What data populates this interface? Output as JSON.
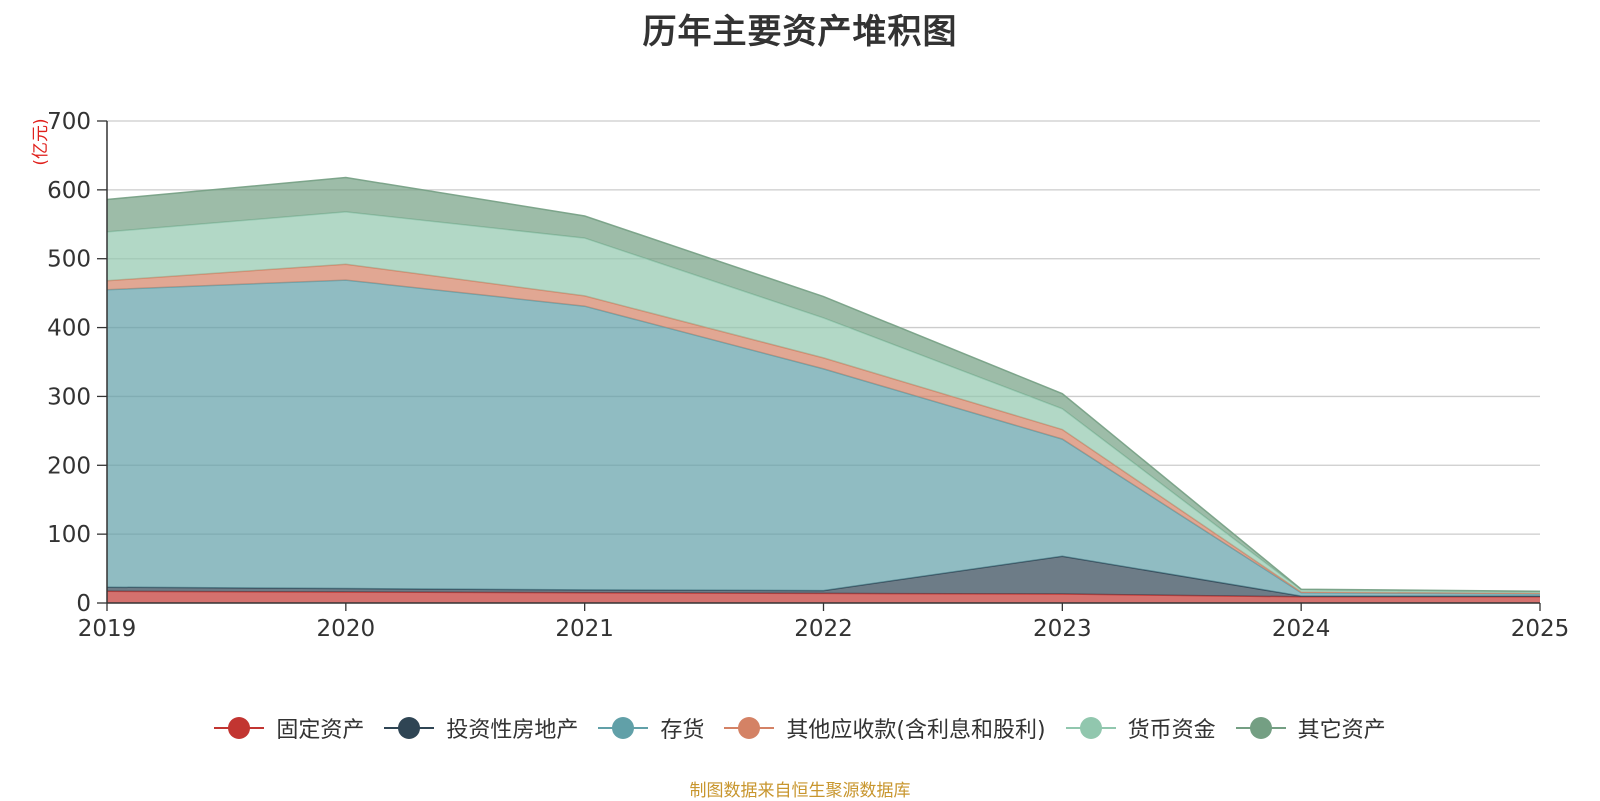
{
  "chart_data": {
    "type": "area",
    "stacked": true,
    "title": "历年主要资产堆积图",
    "unit_label": "(亿元)",
    "x": [
      "2019",
      "2020",
      "2021",
      "2022",
      "2023",
      "2024",
      "2025"
    ],
    "yticks": [
      "0",
      "100",
      "200",
      "300",
      "400",
      "500",
      "600",
      "700"
    ],
    "ylim": [
      0,
      700
    ],
    "grid": true,
    "legend_position": "bottom",
    "series": [
      {
        "name": "固定资产",
        "color": "#c23531",
        "values": [
          17,
          16,
          15,
          14,
          13,
          9,
          9
        ]
      },
      {
        "name": "投资性房地产",
        "color": "#2f4554",
        "values": [
          6,
          5,
          4,
          4,
          55,
          1,
          1
        ]
      },
      {
        "name": "存货",
        "color": "#61a0a8",
        "values": [
          432,
          448,
          412,
          322,
          170,
          5,
          3
        ]
      },
      {
        "name": "其他应收款(含利息和股利)",
        "color": "#d48265",
        "values": [
          13,
          23,
          15,
          16,
          14,
          1,
          1
        ]
      },
      {
        "name": "货币资金",
        "color": "#91c7ae",
        "values": [
          71,
          76,
          84,
          58,
          30,
          3,
          2
        ]
      },
      {
        "name": "其它资产",
        "color": "#749f83",
        "values": [
          47,
          50,
          32,
          31,
          22,
          1,
          1
        ]
      }
    ]
  },
  "footer": {
    "source": "制图数据来自恒生聚源数据库"
  }
}
